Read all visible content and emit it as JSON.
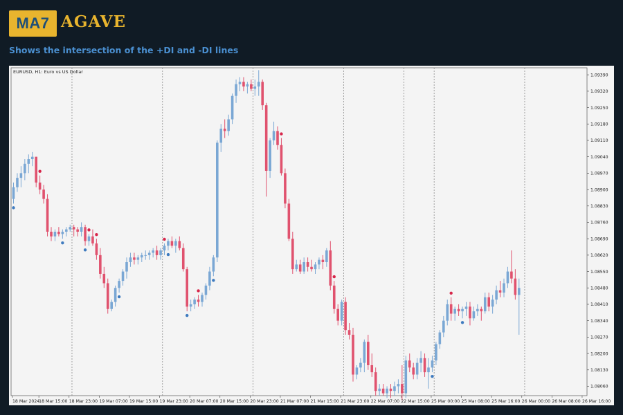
{
  "brand": {
    "badge": "MA7",
    "name": "AGAVE",
    "subtitle": "Shows the intersection of the +DI and -DI lines"
  },
  "colors": {
    "background": "#101b25",
    "accent": "#e8b42e",
    "badge_text": "#1f4f78",
    "subtitle": "#4a8fd0",
    "bull": "#7aa7d4",
    "bear": "#e0526e",
    "dot_up": "#3f7bbf",
    "dot_down": "#d7264a"
  },
  "chart_data": {
    "type": "candlestick",
    "symbol_label": "EURUSD, H1:  Euro vs US Dollar",
    "ylim": [
      1.0802,
      1.0942
    ],
    "y_ticks": [
      "1.09390",
      "1.09320",
      "1.09250",
      "1.09180",
      "1.09110",
      "1.09040",
      "1.08970",
      "1.08900",
      "1.08830",
      "1.08760",
      "1.08690",
      "1.08620",
      "1.08550",
      "1.08480",
      "1.08410",
      "1.08340",
      "1.08270",
      "1.08200",
      "1.08130",
      "1.08060"
    ],
    "x_ticks": [
      {
        "label": "18 Mar 2024",
        "bar": 0
      },
      {
        "label": "18 Mar 15:00",
        "bar": 7
      },
      {
        "label": "18 Mar 23:00",
        "bar": 15
      },
      {
        "label": "19 Mar 07:00",
        "bar": 23
      },
      {
        "label": "19 Mar 15:00",
        "bar": 31
      },
      {
        "label": "19 Mar 23:00",
        "bar": 39
      },
      {
        "label": "20 Mar 07:00",
        "bar": 47
      },
      {
        "label": "20 Mar 15:00",
        "bar": 55
      },
      {
        "label": "20 Mar 23:00",
        "bar": 63
      },
      {
        "label": "21 Mar 07:00",
        "bar": 71
      },
      {
        "label": "21 Mar 15:00",
        "bar": 79
      },
      {
        "label": "21 Mar 23:00",
        "bar": 87
      },
      {
        "label": "22 Mar 07:00",
        "bar": 95
      },
      {
        "label": "22 Mar 15:00",
        "bar": 103
      },
      {
        "label": "25 Mar 00:00",
        "bar": 111
      },
      {
        "label": "25 Mar 08:00",
        "bar": 119
      },
      {
        "label": "25 Mar 16:00",
        "bar": 127
      },
      {
        "label": "26 Mar 00:00",
        "bar": 135
      },
      {
        "label": "26 Mar 08:00",
        "bar": 143
      },
      {
        "label": "26 Mar 16:00",
        "bar": 151
      }
    ],
    "day_separators": [
      16,
      40,
      64,
      88,
      104,
      112,
      136
    ],
    "candles": [
      [
        1.0886,
        1.0893,
        1.0884,
        1.0891
      ],
      [
        1.0891,
        1.0897,
        1.0889,
        1.0895
      ],
      [
        1.0895,
        1.09,
        1.0891,
        1.0897
      ],
      [
        1.0897,
        1.0903,
        1.0894,
        1.0901
      ],
      [
        1.0901,
        1.0905,
        1.0897,
        1.0903
      ],
      [
        1.0903,
        1.0906,
        1.09,
        1.0904
      ],
      [
        1.0904,
        1.0904,
        1.0891,
        1.0893
      ],
      [
        1.0893,
        1.0896,
        1.0888,
        1.089
      ],
      [
        1.089,
        1.0892,
        1.0884,
        1.0886
      ],
      [
        1.0886,
        1.0888,
        1.087,
        1.0872
      ],
      [
        1.0872,
        1.0874,
        1.0868,
        1.087
      ],
      [
        1.087,
        1.0873,
        1.0868,
        1.0872
      ],
      [
        1.0872,
        1.0874,
        1.087,
        1.0871
      ],
      [
        1.0871,
        1.0873,
        1.0869,
        1.0872
      ],
      [
        1.0872,
        1.0874,
        1.087,
        1.0873
      ],
      [
        1.0873,
        1.0875,
        1.0872,
        1.0874
      ],
      [
        1.0874,
        1.0875,
        1.087,
        1.0873
      ],
      [
        1.0873,
        1.0874,
        1.087,
        1.0872
      ],
      [
        1.0872,
        1.0876,
        1.087,
        1.0874
      ],
      [
        1.0874,
        1.0875,
        1.0866,
        1.0868
      ],
      [
        1.0868,
        1.0871,
        1.0866,
        1.087
      ],
      [
        1.087,
        1.0873,
        1.0866,
        1.0867
      ],
      [
        1.0867,
        1.0869,
        1.086,
        1.0862
      ],
      [
        1.0862,
        1.0865,
        1.0852,
        1.0854
      ],
      [
        1.0854,
        1.0857,
        1.0848,
        1.085
      ],
      [
        1.085,
        1.0852,
        1.0837,
        1.0839
      ],
      [
        1.0839,
        1.0843,
        1.0838,
        1.0842
      ],
      [
        1.0842,
        1.0849,
        1.084,
        1.0848
      ],
      [
        1.0848,
        1.0852,
        1.0846,
        1.0851
      ],
      [
        1.0851,
        1.0856,
        1.0849,
        1.0855
      ],
      [
        1.0855,
        1.0861,
        1.0852,
        1.0859
      ],
      [
        1.0859,
        1.0863,
        1.0857,
        1.0861
      ],
      [
        1.0861,
        1.0863,
        1.0858,
        1.086
      ],
      [
        1.086,
        1.0862,
        1.0858,
        1.0861
      ],
      [
        1.0861,
        1.0863,
        1.0859,
        1.0862
      ],
      [
        1.0862,
        1.0864,
        1.086,
        1.0862
      ],
      [
        1.0862,
        1.0864,
        1.086,
        1.0863
      ],
      [
        1.0863,
        1.0865,
        1.0861,
        1.0864
      ],
      [
        1.0864,
        1.0866,
        1.086,
        1.0862
      ],
      [
        1.0862,
        1.0865,
        1.086,
        1.0864
      ],
      [
        1.0864,
        1.0867,
        1.0862,
        1.0866
      ],
      [
        1.0866,
        1.0869,
        1.0864,
        1.0868
      ],
      [
        1.0868,
        1.087,
        1.0865,
        1.0866
      ],
      [
        1.0866,
        1.0869,
        1.0863,
        1.0868
      ],
      [
        1.0868,
        1.087,
        1.0864,
        1.0865
      ],
      [
        1.0865,
        1.0867,
        1.0855,
        1.0856
      ],
      [
        1.0856,
        1.0857,
        1.0838,
        1.084
      ],
      [
        1.084,
        1.0843,
        1.0838,
        1.0841
      ],
      [
        1.0841,
        1.0844,
        1.0839,
        1.0843
      ],
      [
        1.0843,
        1.0845,
        1.084,
        1.0842
      ],
      [
        1.0842,
        1.0846,
        1.084,
        1.0845
      ],
      [
        1.0845,
        1.085,
        1.0843,
        1.0849
      ],
      [
        1.0849,
        1.0857,
        1.0847,
        1.0855
      ],
      [
        1.0855,
        1.0862,
        1.0853,
        1.0861
      ],
      [
        1.0861,
        1.0911,
        1.0859,
        1.091
      ],
      [
        1.091,
        1.0918,
        1.0906,
        1.0916
      ],
      [
        1.0916,
        1.092,
        1.0912,
        1.0915
      ],
      [
        1.0915,
        1.0922,
        1.0913,
        1.092
      ],
      [
        1.092,
        1.0931,
        1.0918,
        1.093
      ],
      [
        1.093,
        1.0937,
        1.0927,
        1.0935
      ],
      [
        1.0935,
        1.0938,
        1.0932,
        1.0936
      ],
      [
        1.0936,
        1.0938,
        1.0932,
        1.0934
      ],
      [
        1.0934,
        1.0936,
        1.0931,
        1.0935
      ],
      [
        1.0935,
        1.0937,
        1.0932,
        1.0933
      ],
      [
        1.0933,
        1.0937,
        1.093,
        1.0934
      ],
      [
        1.0934,
        1.0941,
        1.093,
        1.0936
      ],
      [
        1.0936,
        1.0937,
        1.0924,
        1.0926
      ],
      [
        1.0926,
        1.0927,
        1.0887,
        1.0898
      ],
      [
        1.0898,
        1.0912,
        1.0895,
        1.0911
      ],
      [
        1.0911,
        1.0919,
        1.0909,
        1.0915
      ],
      [
        1.0915,
        1.0917,
        1.0907,
        1.0909
      ],
      [
        1.0909,
        1.0912,
        1.0896,
        1.0897
      ],
      [
        1.0897,
        1.0899,
        1.0882,
        1.0884
      ],
      [
        1.0884,
        1.0886,
        1.0868,
        1.0869
      ],
      [
        1.0869,
        1.0872,
        1.0854,
        1.0856
      ],
      [
        1.0856,
        1.086,
        1.0855,
        1.0858
      ],
      [
        1.0858,
        1.086,
        1.0854,
        1.0855
      ],
      [
        1.0855,
        1.0861,
        1.0854,
        1.0859
      ],
      [
        1.0859,
        1.0861,
        1.0855,
        1.0857
      ],
      [
        1.0857,
        1.086,
        1.0855,
        1.0856
      ],
      [
        1.0856,
        1.0859,
        1.0854,
        1.0858
      ],
      [
        1.0858,
        1.0861,
        1.0856,
        1.086
      ],
      [
        1.086,
        1.0862,
        1.0856,
        1.0859
      ],
      [
        1.0859,
        1.0865,
        1.0857,
        1.0864
      ],
      [
        1.0864,
        1.0868,
        1.0847,
        1.0849
      ],
      [
        1.0849,
        1.0851,
        1.0837,
        1.0839
      ],
      [
        1.0839,
        1.0841,
        1.0832,
        1.0834
      ],
      [
        1.0834,
        1.0843,
        1.0832,
        1.0842
      ],
      [
        1.0842,
        1.0844,
        1.0828,
        1.083
      ],
      [
        1.083,
        1.0833,
        1.0826,
        1.0828
      ],
      [
        1.0828,
        1.0831,
        1.0808,
        1.0811
      ],
      [
        1.0811,
        1.0815,
        1.0809,
        1.0814
      ],
      [
        1.0814,
        1.0818,
        1.0812,
        1.0816
      ],
      [
        1.0816,
        1.0826,
        1.0812,
        1.0825
      ],
      [
        1.0825,
        1.0828,
        1.0813,
        1.0815
      ],
      [
        1.0815,
        1.082,
        1.081,
        1.0812
      ],
      [
        1.0812,
        1.0814,
        1.0802,
        1.0804
      ],
      [
        1.0804,
        1.0807,
        1.0802,
        1.0805
      ],
      [
        1.0805,
        1.0807,
        1.0802,
        1.0803
      ],
      [
        1.0803,
        1.0806,
        1.0801,
        1.0805
      ],
      [
        1.0805,
        1.0807,
        1.0801,
        1.0804
      ],
      [
        1.0804,
        1.0808,
        1.0802,
        1.0806
      ],
      [
        1.0806,
        1.0809,
        1.0803,
        1.0807
      ],
      [
        1.0807,
        1.0815,
        1.08,
        1.0803
      ],
      [
        1.0803,
        1.0819,
        1.0801,
        1.0817
      ],
      [
        1.0817,
        1.082,
        1.0812,
        1.0814
      ],
      [
        1.0814,
        1.0816,
        1.0809,
        1.0811
      ],
      [
        1.0811,
        1.0818,
        1.0809,
        1.0816
      ],
      [
        1.0816,
        1.0821,
        1.0812,
        1.0818
      ],
      [
        1.0818,
        1.082,
        1.081,
        1.0812
      ],
      [
        1.0812,
        1.0818,
        1.0805,
        1.0814
      ],
      [
        1.0814,
        1.0819,
        1.0812,
        1.0817
      ],
      [
        1.0817,
        1.0825,
        1.0815,
        1.0824
      ],
      [
        1.0824,
        1.083,
        1.0822,
        1.0829
      ],
      [
        1.0829,
        1.0836,
        1.0827,
        1.0834
      ],
      [
        1.0834,
        1.0843,
        1.0832,
        1.0841
      ],
      [
        1.0841,
        1.0844,
        1.0834,
        1.0837
      ],
      [
        1.0837,
        1.084,
        1.0834,
        1.0839
      ],
      [
        1.0839,
        1.0841,
        1.0836,
        1.0838
      ],
      [
        1.0838,
        1.084,
        1.0835,
        1.0839
      ],
      [
        1.0839,
        1.0842,
        1.0836,
        1.084
      ],
      [
        1.084,
        1.0842,
        1.0832,
        1.0835
      ],
      [
        1.0835,
        1.084,
        1.0834,
        1.0838
      ],
      [
        1.0838,
        1.0841,
        1.0836,
        1.0839
      ],
      [
        1.0839,
        1.084,
        1.0834,
        1.0838
      ],
      [
        1.0838,
        1.0846,
        1.0837,
        1.0844
      ],
      [
        1.0844,
        1.0846,
        1.0838,
        1.084
      ],
      [
        1.084,
        1.0845,
        1.0837,
        1.0843
      ],
      [
        1.0843,
        1.0849,
        1.0841,
        1.0847
      ],
      [
        1.0847,
        1.0851,
        1.0844,
        1.0846
      ],
      [
        1.0846,
        1.0852,
        1.0844,
        1.085
      ],
      [
        1.085,
        1.0857,
        1.0848,
        1.0855
      ],
      [
        1.0855,
        1.0864,
        1.085,
        1.0852
      ],
      [
        1.0852,
        1.0856,
        1.0843,
        1.0845
      ],
      [
        1.0845,
        1.0852,
        1.0828,
        1.0848
      ]
    ],
    "signals": [
      {
        "bar": 0,
        "dir": "up"
      },
      {
        "bar": 7,
        "dir": "down"
      },
      {
        "bar": 13,
        "dir": "up"
      },
      {
        "bar": 19,
        "dir": "up"
      },
      {
        "bar": 20,
        "dir": "down"
      },
      {
        "bar": 22,
        "dir": "down"
      },
      {
        "bar": 28,
        "dir": "up"
      },
      {
        "bar": 40,
        "dir": "down"
      },
      {
        "bar": 41,
        "dir": "up"
      },
      {
        "bar": 46,
        "dir": "up"
      },
      {
        "bar": 49,
        "dir": "down"
      },
      {
        "bar": 53,
        "dir": "up"
      },
      {
        "bar": 71,
        "dir": "down"
      },
      {
        "bar": 85,
        "dir": "down"
      },
      {
        "bar": 111,
        "dir": "up"
      },
      {
        "bar": 116,
        "dir": "down"
      },
      {
        "bar": 119,
        "dir": "up"
      }
    ]
  }
}
